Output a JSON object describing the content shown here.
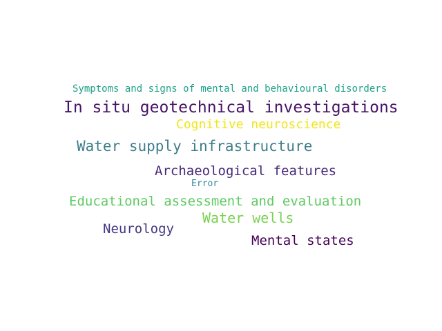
{
  "words": [
    {
      "text": "Symptoms and signs of mental and behavioural disorders",
      "color": "#1fa188"
    },
    {
      "text": "In situ geotechnical investigations",
      "color": "#471365"
    },
    {
      "text": "Cognitive neuroscience",
      "color": "#f1e51d"
    },
    {
      "text": "Water supply infrastructure",
      "color": "#3e7d8b"
    },
    {
      "text": "Archaeological features",
      "color": "#482878"
    },
    {
      "text": "Error",
      "color": "#3a8a9e"
    },
    {
      "text": "Educational assessment and evaluation",
      "color": "#5ec962"
    },
    {
      "text": "Water wells",
      "color": "#7ad151"
    },
    {
      "text": "Neurology",
      "color": "#443983"
    },
    {
      "text": "Mental states",
      "color": "#440154"
    }
  ]
}
